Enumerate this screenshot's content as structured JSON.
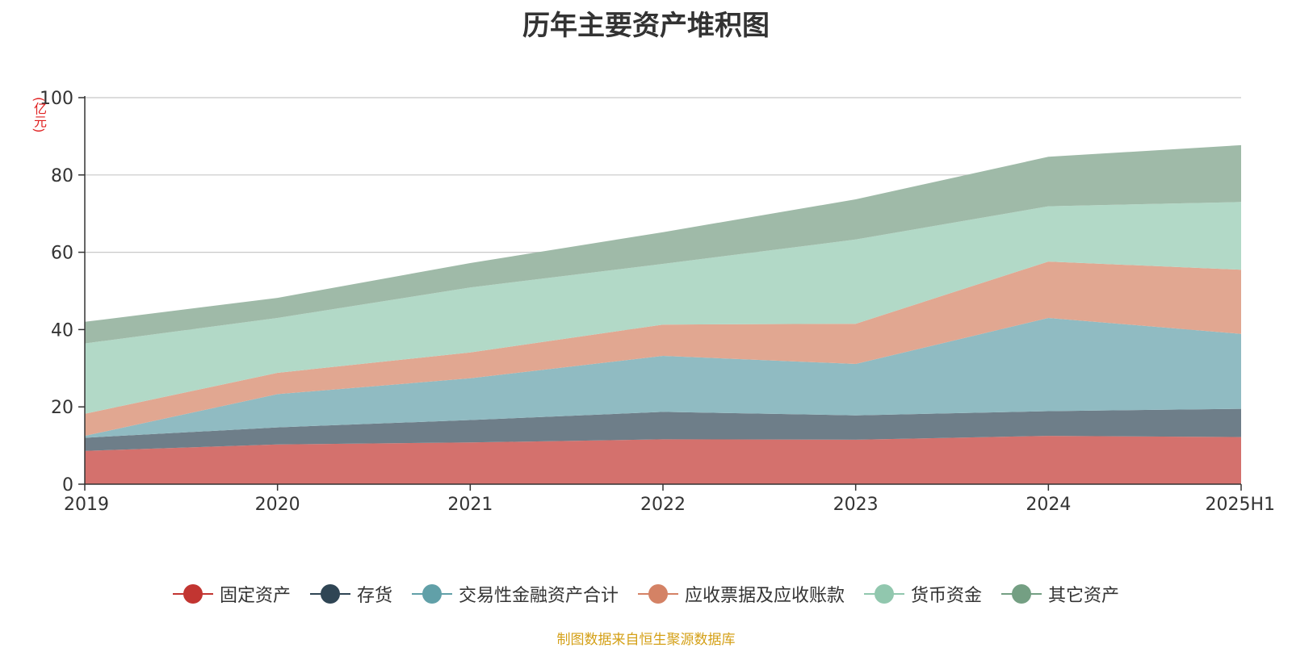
{
  "chart_data": {
    "type": "area",
    "stacked": true,
    "title": "历年主要资产堆积图",
    "unit": "(亿元)",
    "categories": [
      "2019",
      "2020",
      "2021",
      "2022",
      "2023",
      "2024",
      "2025H1"
    ],
    "ylim": [
      0,
      100
    ],
    "yticks": [
      0,
      20,
      40,
      60,
      80,
      100
    ],
    "grid": true,
    "legend_position": "bottom",
    "series": [
      {
        "name": "固定资产",
        "color": "#c23531",
        "fill": "#d4716d",
        "values": [
          8.6,
          10.3,
          10.8,
          11.6,
          11.5,
          12.5,
          12.2
        ]
      },
      {
        "name": "存货",
        "color": "#2f4554",
        "fill": "#6e7e89",
        "values": [
          3.4,
          4.4,
          5.8,
          7.1,
          6.3,
          6.4,
          7.3
        ]
      },
      {
        "name": "交易性金融资产合计",
        "color": "#61a0a8",
        "fill": "#90bbc2",
        "values": [
          0.5,
          8.6,
          10.8,
          14.5,
          13.3,
          24.1,
          19.4
        ]
      },
      {
        "name": "应收票据及应收账款",
        "color": "#d48265",
        "fill": "#e1a791",
        "values": [
          5.7,
          5.5,
          6.7,
          8.1,
          10.4,
          14.6,
          16.6
        ]
      },
      {
        "name": "货币资金",
        "color": "#91c7ae",
        "fill": "#b2d9c7",
        "values": [
          18.2,
          14.2,
          16.8,
          15.7,
          21.8,
          14.3,
          17.5
        ]
      },
      {
        "name": "其它资产",
        "color": "#749f83",
        "fill": "#9fbaa8",
        "values": [
          5.6,
          5.2,
          6.3,
          8.2,
          10.4,
          12.8,
          14.7
        ]
      }
    ]
  },
  "footer": {
    "source": "制图数据来自恒生聚源数据库"
  }
}
